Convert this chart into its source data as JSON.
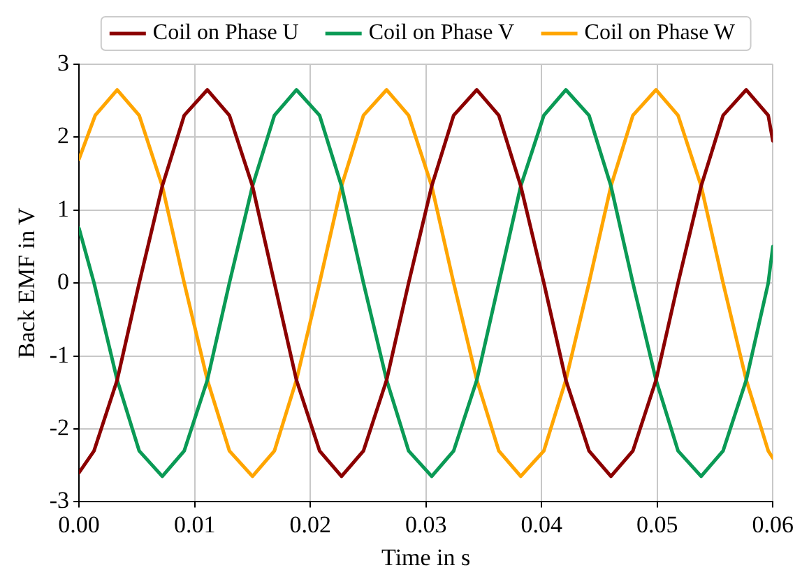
{
  "chart_data": {
    "type": "line",
    "xlabel": "Time in s",
    "ylabel": "Back EMF in V",
    "xlim": [
      0,
      0.06
    ],
    "ylim": [
      -3,
      3
    ],
    "xticks": [
      {
        "value": 0,
        "label": "0.00"
      },
      {
        "value": 0.01,
        "label": "0.01"
      },
      {
        "value": 0.02,
        "label": "0.02"
      },
      {
        "value": 0.03,
        "label": "0.03"
      },
      {
        "value": 0.04,
        "label": "0.04"
      },
      {
        "value": 0.05,
        "label": "0.05"
      },
      {
        "value": 0.06,
        "label": "0.06"
      }
    ],
    "yticks": [
      -3,
      -2,
      -1,
      0,
      1,
      2,
      3
    ],
    "grid": true,
    "legend": "top",
    "marker": "none",
    "line_style": "solid",
    "series": [
      {
        "name": "Coil on Phase U",
        "color": "#8b0000",
        "x": [
          0,
          0.0013,
          0.0033,
          0.0052,
          0.0072,
          0.0091,
          0.0111,
          0.013,
          0.015,
          0.0169,
          0.0188,
          0.0208,
          0.0227,
          0.0246,
          0.0266,
          0.0285,
          0.0305,
          0.0324,
          0.0344,
          0.0363,
          0.0382,
          0.0402,
          0.0421,
          0.0441,
          0.046,
          0.0479,
          0.0499,
          0.0518,
          0.0538,
          0.0557,
          0.0577,
          0.0596,
          0.06
        ],
        "values": [
          -2.6,
          -2.3,
          -1.33,
          0,
          1.33,
          2.3,
          2.65,
          2.3,
          1.33,
          0,
          -1.33,
          -2.3,
          -2.65,
          -2.3,
          -1.33,
          0,
          1.33,
          2.3,
          2.65,
          2.3,
          1.33,
          0,
          -1.33,
          -2.3,
          -2.65,
          -2.3,
          -1.33,
          0,
          1.33,
          2.3,
          2.65,
          2.3,
          1.95
        ]
      },
      {
        "name": "Coil on Phase V",
        "color": "#0a9a55",
        "x": [
          0,
          0.0013,
          0.0033,
          0.0052,
          0.0072,
          0.0091,
          0.0111,
          0.013,
          0.015,
          0.0169,
          0.0188,
          0.0208,
          0.0227,
          0.0246,
          0.0266,
          0.0285,
          0.0305,
          0.0324,
          0.0344,
          0.0363,
          0.0382,
          0.0402,
          0.0421,
          0.0441,
          0.046,
          0.0479,
          0.0499,
          0.0518,
          0.0538,
          0.0557,
          0.0577,
          0.0596,
          0.06
        ],
        "values": [
          0.75,
          0,
          -1.33,
          -2.3,
          -2.65,
          -2.3,
          -1.33,
          0,
          1.33,
          2.3,
          2.65,
          2.3,
          1.33,
          0,
          -1.33,
          -2.3,
          -2.65,
          -2.3,
          -1.33,
          0,
          1.33,
          2.3,
          2.65,
          2.3,
          1.33,
          0,
          -1.33,
          -2.3,
          -2.65,
          -2.3,
          -1.33,
          0,
          0.5
        ]
      },
      {
        "name": "Coil on Phase W",
        "color": "#ffa500",
        "x": [
          0,
          0.0014,
          0.0033,
          0.0052,
          0.0072,
          0.0091,
          0.0111,
          0.013,
          0.015,
          0.0169,
          0.0188,
          0.0208,
          0.0227,
          0.0246,
          0.0266,
          0.0285,
          0.0305,
          0.0324,
          0.0344,
          0.0363,
          0.0382,
          0.0402,
          0.0421,
          0.0441,
          0.046,
          0.0479,
          0.0499,
          0.0518,
          0.0538,
          0.0557,
          0.0577,
          0.0596,
          0.06
        ],
        "values": [
          1.7,
          2.3,
          2.65,
          2.3,
          1.33,
          0,
          -1.33,
          -2.3,
          -2.65,
          -2.3,
          -1.33,
          0,
          1.33,
          2.3,
          2.65,
          2.3,
          1.33,
          0,
          -1.33,
          -2.3,
          -2.65,
          -2.3,
          -1.33,
          0,
          1.33,
          2.3,
          2.65,
          2.3,
          1.33,
          0,
          -1.33,
          -2.3,
          -2.4
        ]
      }
    ]
  }
}
